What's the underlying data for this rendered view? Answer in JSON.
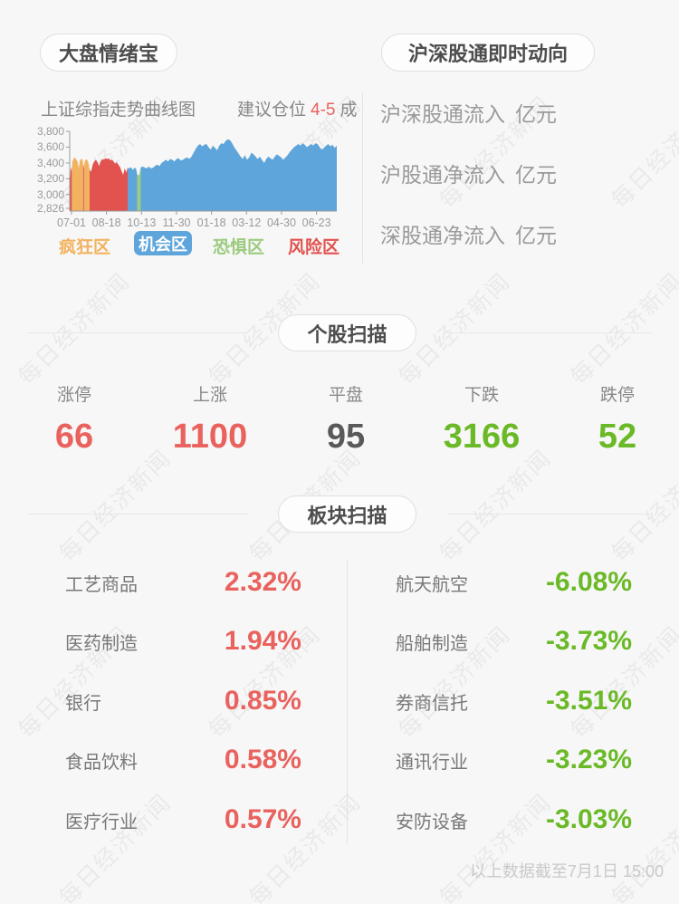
{
  "watermark": {
    "text": "每日经济新闻"
  },
  "colors": {
    "up": "#e9625e",
    "down": "#6ab926",
    "flat": "#595959",
    "mania": "#f2b360",
    "opportunity": "#5da5da",
    "fear": "#9ccb80",
    "risk": "#e2524f"
  },
  "panels": {
    "sentiment": {
      "title": "大盘情绪宝",
      "chart_title": "上证综指走势曲线图",
      "advice_prefix": "建议仓位",
      "advice_value": "4-5",
      "advice_suffix": "成"
    },
    "northbound": {
      "title": "沪深股通即时动向",
      "rows": [
        {
          "label": "沪深股通流入",
          "value": "",
          "unit": "亿元"
        },
        {
          "label": "沪股通净流入",
          "value": "",
          "unit": "亿元"
        },
        {
          "label": "深股通净流入",
          "value": "",
          "unit": "亿元"
        }
      ]
    },
    "stocks": {
      "title": "个股扫描",
      "stats": [
        {
          "label": "涨停",
          "value": "66",
          "state": "up"
        },
        {
          "label": "上涨",
          "value": "1100",
          "state": "up"
        },
        {
          "label": "平盘",
          "value": "95",
          "state": "flat"
        },
        {
          "label": "下跌",
          "value": "3166",
          "state": "down"
        },
        {
          "label": "跌停",
          "value": "52",
          "state": "down"
        }
      ]
    },
    "sectors": {
      "title": "板块扫描",
      "gainers": [
        {
          "name": "工艺商品",
          "change": "2.32%"
        },
        {
          "name": "医药制造",
          "change": "1.94%"
        },
        {
          "name": "银行",
          "change": "0.85%"
        },
        {
          "name": "食品饮料",
          "change": "0.58%"
        },
        {
          "name": "医疗行业",
          "change": "0.57%"
        }
      ],
      "losers": [
        {
          "name": "航天航空",
          "change": "-6.08%"
        },
        {
          "name": "船舶制造",
          "change": "-3.73%"
        },
        {
          "name": "券商信托",
          "change": "-3.51%"
        },
        {
          "name": "通讯行业",
          "change": "-3.23%"
        },
        {
          "name": "安防设备",
          "change": "-3.03%"
        }
      ]
    }
  },
  "footer": {
    "note": "以上数据截至7月1日 15:00"
  },
  "chart_data": {
    "type": "area",
    "title": "上证综指走势曲线图",
    "xlabel": "",
    "ylabel": "",
    "ylim": [
      2826,
      3800
    ],
    "yticks": [
      "3,800",
      "3,600",
      "3,400",
      "3,200",
      "3,000",
      "2,826"
    ],
    "ytick_values": [
      3800,
      3600,
      3400,
      3200,
      3000,
      2826
    ],
    "xticks": [
      "07-01",
      "08-18",
      "10-13",
      "11-30",
      "01-18",
      "03-12",
      "04-30",
      "06-23"
    ],
    "legend": [
      {
        "label": "疯狂区",
        "key": "mania",
        "active": false
      },
      {
        "label": "机会区",
        "key": "opportunity",
        "active": true
      },
      {
        "label": "恐惧区",
        "key": "fear",
        "active": false
      },
      {
        "label": "风险区",
        "key": "risk",
        "active": false
      }
    ],
    "zones": [
      {
        "from": 0.0,
        "to": 0.008,
        "color": "risk"
      },
      {
        "from": 0.008,
        "to": 0.05,
        "color": "mania"
      },
      {
        "from": 0.05,
        "to": 0.054,
        "color": "risk"
      },
      {
        "from": 0.054,
        "to": 0.0746,
        "color": "mania"
      },
      {
        "from": 0.0746,
        "to": 0.217,
        "color": "risk"
      },
      {
        "from": 0.217,
        "to": 0.253,
        "color": "opportunity"
      },
      {
        "from": 0.253,
        "to": 0.266,
        "color": "fear"
      },
      {
        "from": 0.266,
        "to": 1.0,
        "color": "opportunity"
      }
    ],
    "points": [
      [
        0.0,
        3120
      ],
      [
        0.004,
        3345
      ],
      [
        0.007,
        3300
      ],
      [
        0.01,
        3420
      ],
      [
        0.015,
        3455
      ],
      [
        0.02,
        3470
      ],
      [
        0.025,
        3440
      ],
      [
        0.03,
        3415
      ],
      [
        0.034,
        3330
      ],
      [
        0.038,
        3430
      ],
      [
        0.043,
        3455
      ],
      [
        0.048,
        3440
      ],
      [
        0.052,
        3340
      ],
      [
        0.056,
        3410
      ],
      [
        0.06,
        3445
      ],
      [
        0.065,
        3440
      ],
      [
        0.07,
        3400
      ],
      [
        0.075,
        3310
      ],
      [
        0.08,
        3290
      ],
      [
        0.086,
        3380
      ],
      [
        0.092,
        3420
      ],
      [
        0.098,
        3440
      ],
      [
        0.104,
        3410
      ],
      [
        0.11,
        3360
      ],
      [
        0.116,
        3420
      ],
      [
        0.122,
        3450
      ],
      [
        0.128,
        3440
      ],
      [
        0.134,
        3460
      ],
      [
        0.14,
        3450
      ],
      [
        0.146,
        3460
      ],
      [
        0.152,
        3430
      ],
      [
        0.158,
        3445
      ],
      [
        0.164,
        3420
      ],
      [
        0.17,
        3390
      ],
      [
        0.176,
        3410
      ],
      [
        0.182,
        3380
      ],
      [
        0.188,
        3350
      ],
      [
        0.194,
        3300
      ],
      [
        0.2,
        3250
      ],
      [
        0.206,
        3330
      ],
      [
        0.212,
        3280
      ],
      [
        0.217,
        3340
      ],
      [
        0.222,
        3330
      ],
      [
        0.227,
        3345
      ],
      [
        0.232,
        3335
      ],
      [
        0.237,
        3310
      ],
      [
        0.242,
        3340
      ],
      [
        0.248,
        3330
      ],
      [
        0.253,
        3250
      ],
      [
        0.26,
        3245
      ],
      [
        0.266,
        3340
      ],
      [
        0.272,
        3355
      ],
      [
        0.28,
        3345
      ],
      [
        0.288,
        3330
      ],
      [
        0.296,
        3355
      ],
      [
        0.304,
        3330
      ],
      [
        0.312,
        3340
      ],
      [
        0.32,
        3365
      ],
      [
        0.328,
        3380
      ],
      [
        0.336,
        3360
      ],
      [
        0.344,
        3400
      ],
      [
        0.352,
        3420
      ],
      [
        0.36,
        3440
      ],
      [
        0.368,
        3420
      ],
      [
        0.376,
        3450
      ],
      [
        0.384,
        3440
      ],
      [
        0.392,
        3420
      ],
      [
        0.4,
        3450
      ],
      [
        0.408,
        3460
      ],
      [
        0.416,
        3430
      ],
      [
        0.424,
        3440
      ],
      [
        0.432,
        3460
      ],
      [
        0.44,
        3470
      ],
      [
        0.448,
        3450
      ],
      [
        0.456,
        3480
      ],
      [
        0.464,
        3530
      ],
      [
        0.472,
        3580
      ],
      [
        0.48,
        3620
      ],
      [
        0.488,
        3640
      ],
      [
        0.496,
        3610
      ],
      [
        0.504,
        3630
      ],
      [
        0.512,
        3640
      ],
      [
        0.52,
        3600
      ],
      [
        0.528,
        3570
      ],
      [
        0.536,
        3620
      ],
      [
        0.544,
        3590
      ],
      [
        0.552,
        3560
      ],
      [
        0.56,
        3620
      ],
      [
        0.568,
        3650
      ],
      [
        0.576,
        3640
      ],
      [
        0.584,
        3680
      ],
      [
        0.592,
        3700
      ],
      [
        0.6,
        3690
      ],
      [
        0.608,
        3650
      ],
      [
        0.616,
        3600
      ],
      [
        0.624,
        3560
      ],
      [
        0.632,
        3520
      ],
      [
        0.64,
        3480
      ],
      [
        0.648,
        3450
      ],
      [
        0.656,
        3500
      ],
      [
        0.664,
        3440
      ],
      [
        0.672,
        3470
      ],
      [
        0.68,
        3530
      ],
      [
        0.688,
        3510
      ],
      [
        0.696,
        3480
      ],
      [
        0.704,
        3450
      ],
      [
        0.712,
        3480
      ],
      [
        0.72,
        3440
      ],
      [
        0.728,
        3400
      ],
      [
        0.736,
        3450
      ],
      [
        0.744,
        3480
      ],
      [
        0.752,
        3460
      ],
      [
        0.76,
        3440
      ],
      [
        0.768,
        3480
      ],
      [
        0.776,
        3510
      ],
      [
        0.784,
        3490
      ],
      [
        0.792,
        3470
      ],
      [
        0.8,
        3440
      ],
      [
        0.808,
        3470
      ],
      [
        0.816,
        3500
      ],
      [
        0.824,
        3540
      ],
      [
        0.832,
        3570
      ],
      [
        0.84,
        3600
      ],
      [
        0.848,
        3620
      ],
      [
        0.856,
        3640
      ],
      [
        0.864,
        3620
      ],
      [
        0.872,
        3650
      ],
      [
        0.88,
        3630
      ],
      [
        0.888,
        3600
      ],
      [
        0.896,
        3620
      ],
      [
        0.904,
        3640
      ],
      [
        0.912,
        3620
      ],
      [
        0.92,
        3650
      ],
      [
        0.928,
        3640
      ],
      [
        0.936,
        3600
      ],
      [
        0.944,
        3570
      ],
      [
        0.952,
        3590
      ],
      [
        0.96,
        3620
      ],
      [
        0.968,
        3640
      ],
      [
        0.976,
        3610
      ],
      [
        0.984,
        3630
      ],
      [
        0.992,
        3590
      ],
      [
        1.0,
        3620
      ]
    ]
  }
}
